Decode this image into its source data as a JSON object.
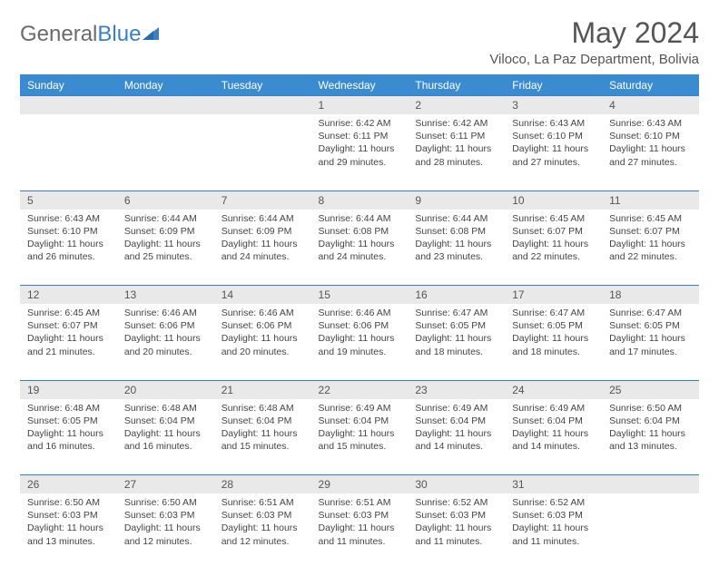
{
  "brand": {
    "part1": "General",
    "part2": "Blue"
  },
  "title": "May 2024",
  "location": "Viloco, La Paz Department, Bolivia",
  "colors": {
    "header_bg": "#3b8bd0",
    "accent": "#3b7fc4",
    "daynum_bg": "#e9e9e9",
    "text": "#444444",
    "title_text": "#555555"
  },
  "dayHeaders": [
    "Sunday",
    "Monday",
    "Tuesday",
    "Wednesday",
    "Thursday",
    "Friday",
    "Saturday"
  ],
  "weeks": [
    [
      null,
      null,
      null,
      {
        "n": "1",
        "sr": "6:42 AM",
        "ss": "6:11 PM",
        "dl": "11 hours and 29 minutes."
      },
      {
        "n": "2",
        "sr": "6:42 AM",
        "ss": "6:11 PM",
        "dl": "11 hours and 28 minutes."
      },
      {
        "n": "3",
        "sr": "6:43 AM",
        "ss": "6:10 PM",
        "dl": "11 hours and 27 minutes."
      },
      {
        "n": "4",
        "sr": "6:43 AM",
        "ss": "6:10 PM",
        "dl": "11 hours and 27 minutes."
      }
    ],
    [
      {
        "n": "5",
        "sr": "6:43 AM",
        "ss": "6:10 PM",
        "dl": "11 hours and 26 minutes."
      },
      {
        "n": "6",
        "sr": "6:44 AM",
        "ss": "6:09 PM",
        "dl": "11 hours and 25 minutes."
      },
      {
        "n": "7",
        "sr": "6:44 AM",
        "ss": "6:09 PM",
        "dl": "11 hours and 24 minutes."
      },
      {
        "n": "8",
        "sr": "6:44 AM",
        "ss": "6:08 PM",
        "dl": "11 hours and 24 minutes."
      },
      {
        "n": "9",
        "sr": "6:44 AM",
        "ss": "6:08 PM",
        "dl": "11 hours and 23 minutes."
      },
      {
        "n": "10",
        "sr": "6:45 AM",
        "ss": "6:07 PM",
        "dl": "11 hours and 22 minutes."
      },
      {
        "n": "11",
        "sr": "6:45 AM",
        "ss": "6:07 PM",
        "dl": "11 hours and 22 minutes."
      }
    ],
    [
      {
        "n": "12",
        "sr": "6:45 AM",
        "ss": "6:07 PM",
        "dl": "11 hours and 21 minutes."
      },
      {
        "n": "13",
        "sr": "6:46 AM",
        "ss": "6:06 PM",
        "dl": "11 hours and 20 minutes."
      },
      {
        "n": "14",
        "sr": "6:46 AM",
        "ss": "6:06 PM",
        "dl": "11 hours and 20 minutes."
      },
      {
        "n": "15",
        "sr": "6:46 AM",
        "ss": "6:06 PM",
        "dl": "11 hours and 19 minutes."
      },
      {
        "n": "16",
        "sr": "6:47 AM",
        "ss": "6:05 PM",
        "dl": "11 hours and 18 minutes."
      },
      {
        "n": "17",
        "sr": "6:47 AM",
        "ss": "6:05 PM",
        "dl": "11 hours and 18 minutes."
      },
      {
        "n": "18",
        "sr": "6:47 AM",
        "ss": "6:05 PM",
        "dl": "11 hours and 17 minutes."
      }
    ],
    [
      {
        "n": "19",
        "sr": "6:48 AM",
        "ss": "6:05 PM",
        "dl": "11 hours and 16 minutes."
      },
      {
        "n": "20",
        "sr": "6:48 AM",
        "ss": "6:04 PM",
        "dl": "11 hours and 16 minutes."
      },
      {
        "n": "21",
        "sr": "6:48 AM",
        "ss": "6:04 PM",
        "dl": "11 hours and 15 minutes."
      },
      {
        "n": "22",
        "sr": "6:49 AM",
        "ss": "6:04 PM",
        "dl": "11 hours and 15 minutes."
      },
      {
        "n": "23",
        "sr": "6:49 AM",
        "ss": "6:04 PM",
        "dl": "11 hours and 14 minutes."
      },
      {
        "n": "24",
        "sr": "6:49 AM",
        "ss": "6:04 PM",
        "dl": "11 hours and 14 minutes."
      },
      {
        "n": "25",
        "sr": "6:50 AM",
        "ss": "6:04 PM",
        "dl": "11 hours and 13 minutes."
      }
    ],
    [
      {
        "n": "26",
        "sr": "6:50 AM",
        "ss": "6:03 PM",
        "dl": "11 hours and 13 minutes."
      },
      {
        "n": "27",
        "sr": "6:50 AM",
        "ss": "6:03 PM",
        "dl": "11 hours and 12 minutes."
      },
      {
        "n": "28",
        "sr": "6:51 AM",
        "ss": "6:03 PM",
        "dl": "11 hours and 12 minutes."
      },
      {
        "n": "29",
        "sr": "6:51 AM",
        "ss": "6:03 PM",
        "dl": "11 hours and 11 minutes."
      },
      {
        "n": "30",
        "sr": "6:52 AM",
        "ss": "6:03 PM",
        "dl": "11 hours and 11 minutes."
      },
      {
        "n": "31",
        "sr": "6:52 AM",
        "ss": "6:03 PM",
        "dl": "11 hours and 11 minutes."
      },
      null
    ]
  ],
  "labels": {
    "sunrise": "Sunrise: ",
    "sunset": "Sunset: ",
    "daylight": "Daylight: "
  }
}
